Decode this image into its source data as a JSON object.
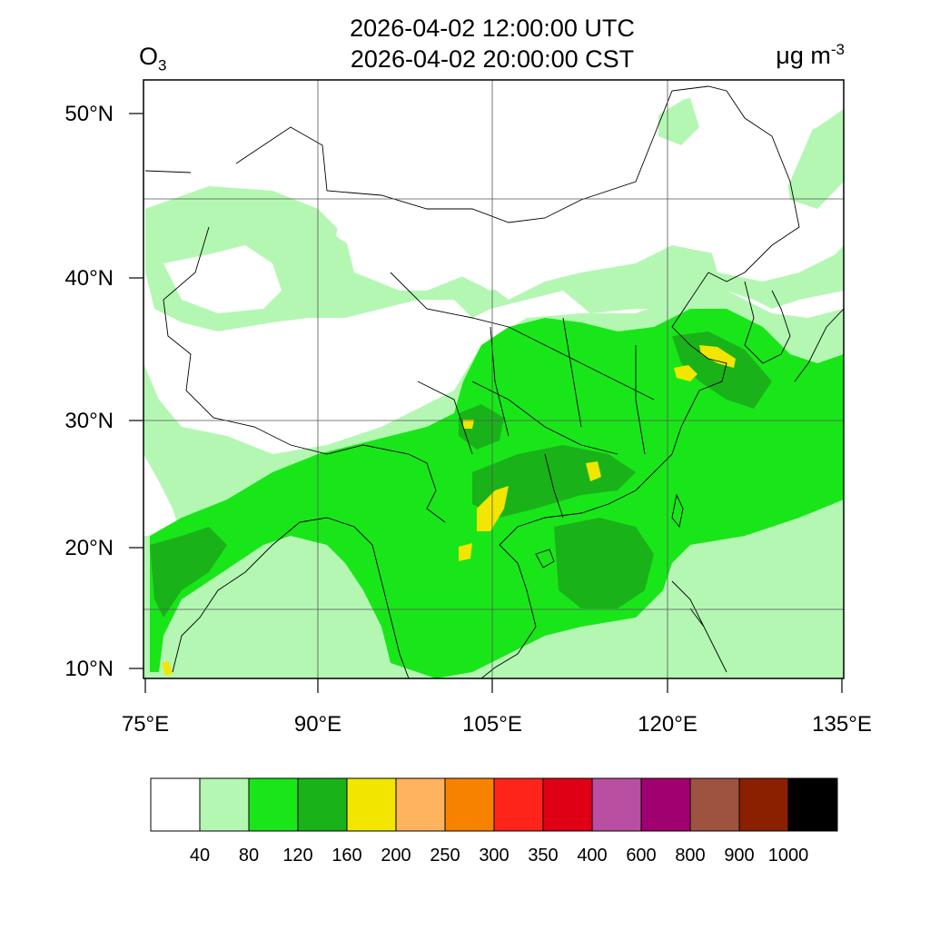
{
  "header": {
    "title_utc": "2026-04-02 12:00:00 UTC",
    "title_local": "2026-04-02 20:00:00 CST",
    "species_main": "O",
    "species_sub": "3",
    "units_main": "μg m",
    "units_sup": "-3"
  },
  "axes": {
    "lat_labels": [
      "50°N",
      "40°N",
      "30°N",
      "20°N",
      "10°N"
    ],
    "lon_labels": [
      "75°E",
      "90°E",
      "105°E",
      "120°E",
      "135°E"
    ]
  },
  "colorbar": {
    "colors": [
      "#ffffff",
      "#b3f7b3",
      "#19e619",
      "#19b319",
      "#f2e600",
      "#ffb35e",
      "#f78200",
      "#ff2419",
      "#e00016",
      "#b84fa0",
      "#a00070",
      "#9e5240",
      "#8a2000",
      "#000000"
    ],
    "labels": [
      "40",
      "80",
      "120",
      "160",
      "200",
      "250",
      "300",
      "350",
      "400",
      "600",
      "800",
      "900",
      "1000"
    ]
  }
}
